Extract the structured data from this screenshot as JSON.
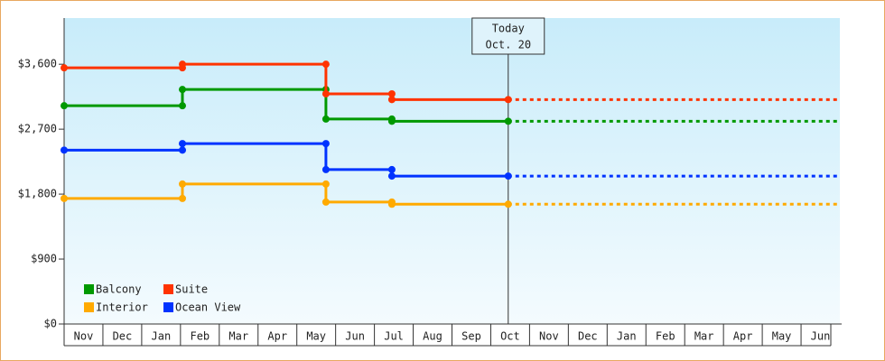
{
  "chart_data": {
    "type": "step-line",
    "categories": [
      "Nov",
      "Dec",
      "Jan",
      "Feb",
      "Mar",
      "Apr",
      "May",
      "Jun",
      "Jul",
      "Aug",
      "Sep",
      "Oct",
      "Nov",
      "Dec",
      "Jan",
      "Feb",
      "Mar",
      "Apr",
      "May",
      "Jun"
    ],
    "x": [
      0,
      3.05,
      3.05,
      6.75,
      6.75,
      8.45,
      8.45,
      11.45
    ],
    "xlim": [
      0,
      20
    ],
    "series": [
      {
        "name": "Balcony",
        "color": "#009900",
        "values": [
          3025,
          3025,
          3250,
          3250,
          2840,
          2840,
          2810,
          2810
        ]
      },
      {
        "name": "Suite",
        "color": "#ff3300",
        "values": [
          3550,
          3550,
          3600,
          3600,
          3190,
          3190,
          3110,
          3110
        ]
      },
      {
        "name": "Interior",
        "color": "#ffaa00",
        "values": [
          1740,
          1740,
          1940,
          1940,
          1690,
          1690,
          1660,
          1660
        ]
      },
      {
        "name": "Ocean View",
        "color": "#0033ff",
        "values": [
          2410,
          2410,
          2500,
          2500,
          2140,
          2140,
          2050,
          2050
        ]
      }
    ],
    "ylim": [
      0,
      4240
    ],
    "yticks": [
      {
        "value": 0,
        "label": "$0"
      },
      {
        "value": 900,
        "label": "$900"
      },
      {
        "value": 1800,
        "label": "$1,800"
      },
      {
        "value": 2700,
        "label": "$2,700"
      },
      {
        "value": 3600,
        "label": "$3,600"
      }
    ],
    "annotation": {
      "x": 11.45,
      "lines": [
        "Today",
        "Oct. 20"
      ]
    },
    "legend": "lower left",
    "projection": "dashed"
  }
}
